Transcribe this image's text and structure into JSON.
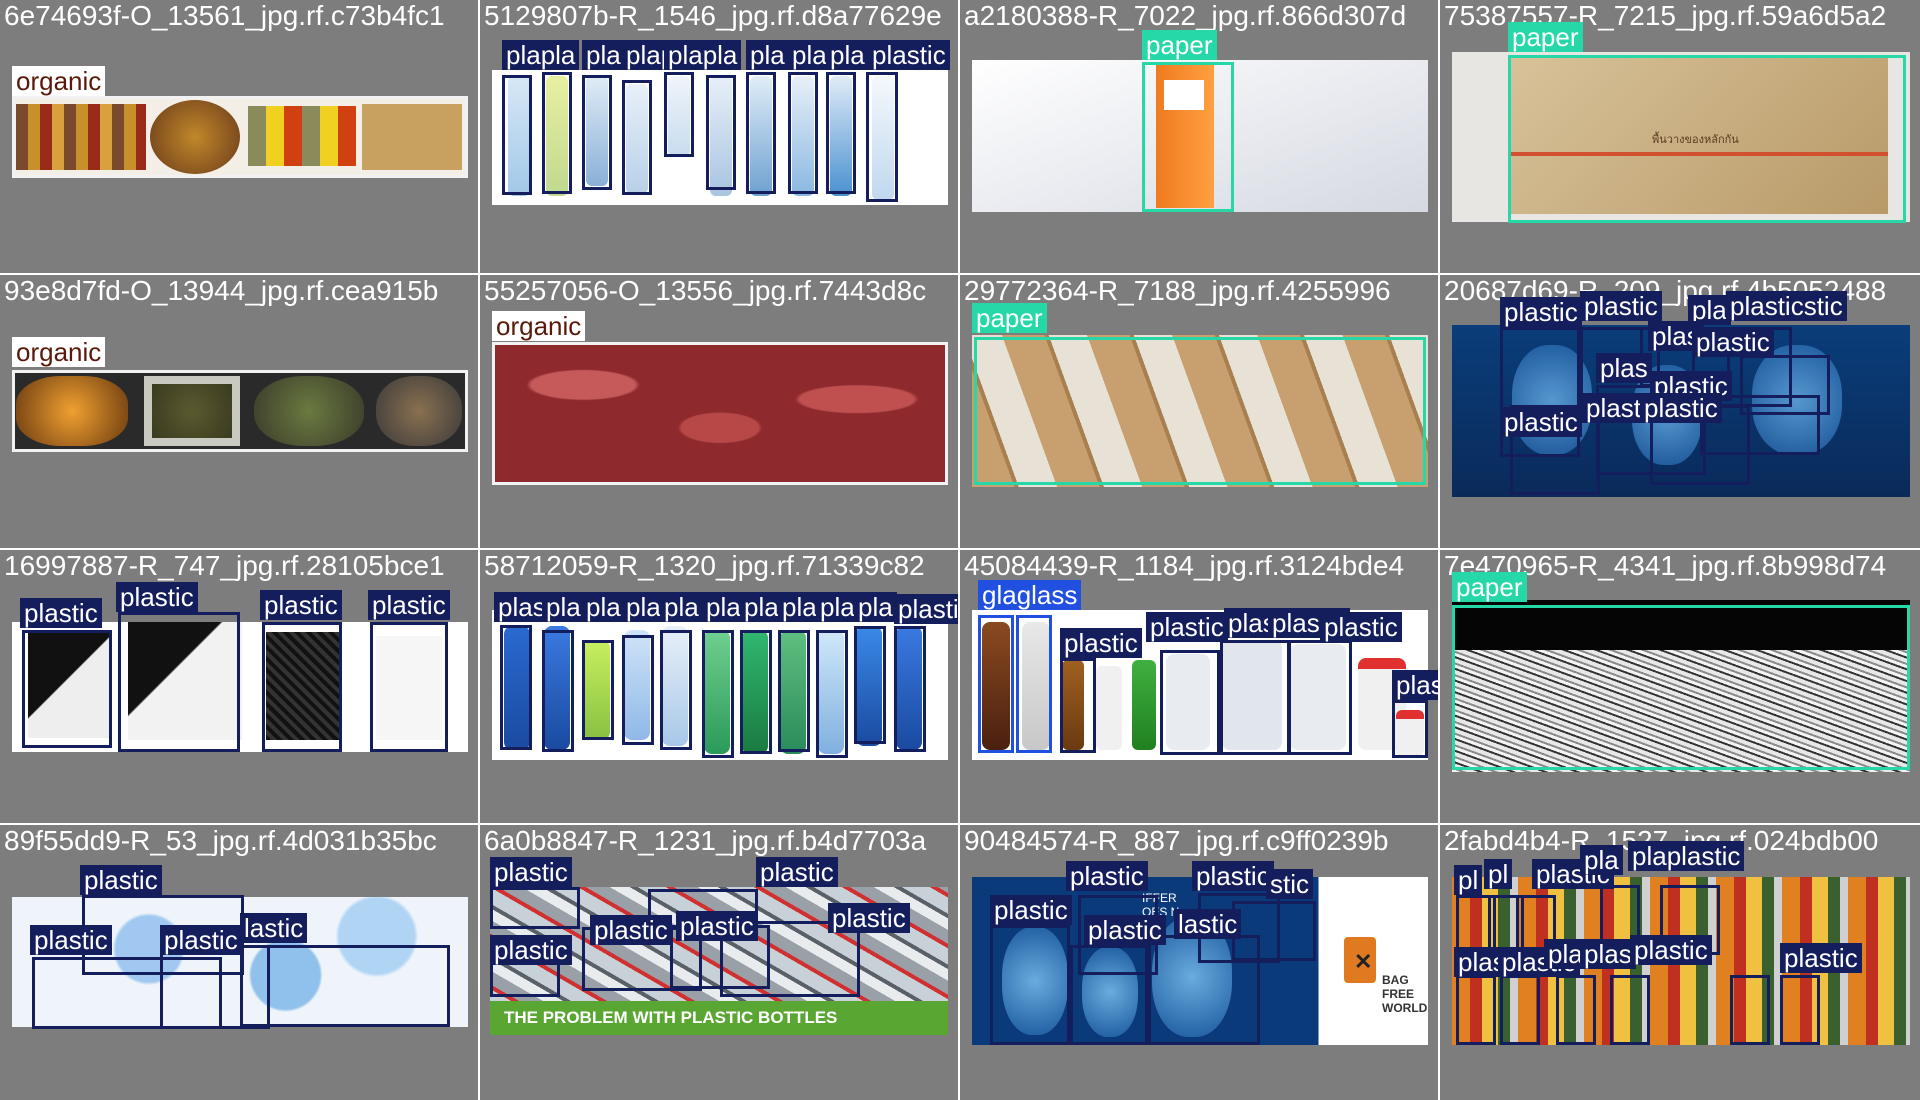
{
  "tiles": [
    {
      "title": "6e74693f-O_13561_jpg.rf.c73b4fc1",
      "labels": [
        "organic"
      ]
    },
    {
      "title": "5129807b-R_1546_jpg.rf.d8a77629e",
      "labels": [
        "plapla",
        "pla",
        "plapla",
        "plapla",
        "pla",
        "pla",
        "pla",
        "plastic"
      ]
    },
    {
      "title": "a2180388-R_7022_jpg.rf.866d307d",
      "labels": [
        "paper"
      ]
    },
    {
      "title": "75387557-R_7215_jpg.rf.59a6d5a2",
      "labels": [
        "paper"
      ]
    },
    {
      "title": "93e8d7fd-O_13944_jpg.rf.cea915b",
      "labels": [
        "organic"
      ]
    },
    {
      "title": "55257056-O_13556_jpg.rf.7443d8c",
      "labels": [
        "organic"
      ]
    },
    {
      "title": "29772364-R_7188_jpg.rf.4255996",
      "labels": [
        "paper"
      ]
    },
    {
      "title": "20687d69-R_209_jpg.rf.4b5052488",
      "labels": [
        "plastic",
        "plastic",
        "pla",
        "plasticstic",
        "plas",
        "plastic",
        "plas",
        "plastic",
        "plastic",
        "plast",
        "plastic"
      ]
    },
    {
      "title": "16997887-R_747_jpg.rf.28105bce1",
      "labels": [
        "plastic",
        "plastic",
        "plastic",
        "plastic"
      ]
    },
    {
      "title": "58712059-R_1320_jpg.rf.71339c82",
      "labels": [
        "plas",
        "pla",
        "pla",
        "pla",
        "pla",
        "pla",
        "plas",
        "pla",
        "plas",
        "pla",
        "plastic"
      ]
    },
    {
      "title": "45084439-R_1184_jpg.rf.3124bde4",
      "labels": [
        "glaglass",
        "plastic",
        "plastic",
        "plastic",
        "plastic",
        "plastic",
        "plastic"
      ]
    },
    {
      "title": "7e470965-R_4341_jpg.rf.8b998d74",
      "labels": [
        "paper"
      ]
    },
    {
      "title": "89f55dd9-R_53_jpg.rf.4d031b35bc",
      "labels": [
        "plastic",
        "plastic",
        "plastic",
        "lastic"
      ]
    },
    {
      "title": "6a0b8847-R_1231_jpg.rf.b4d7703a",
      "labels": [
        "plastic",
        "plastic",
        "plastic",
        "plastic",
        "plastic",
        "plastic"
      ]
    },
    {
      "title": "90484574-R_887_jpg.rf.c9ff0239b",
      "labels": [
        "plastic",
        "plastic",
        "stic",
        "plastic",
        "plastic",
        "lastic"
      ]
    },
    {
      "title": "2fabd4b4-R_1527_jpg.rf.024bdb00",
      "labels": [
        "pl",
        "pl",
        "plastic",
        "pla",
        "plaplastic",
        "plastic",
        "plastic",
        "pla",
        "plas",
        "plastic",
        "plastic"
      ]
    }
  ],
  "banner_text": "THE PROBLEM WITH PLASTIC BOTTLES",
  "side_logo_text": "BAG FREE WORLD",
  "box_texts": [
    "พื้นวางของหลักกัน",
    "IFFER OES N"
  ],
  "colors": {
    "plastic": "#151e5c",
    "paper": "#26d8a8",
    "organic": "#ffffff",
    "glass": "#2150e0",
    "tile": "#7d7d7d"
  }
}
